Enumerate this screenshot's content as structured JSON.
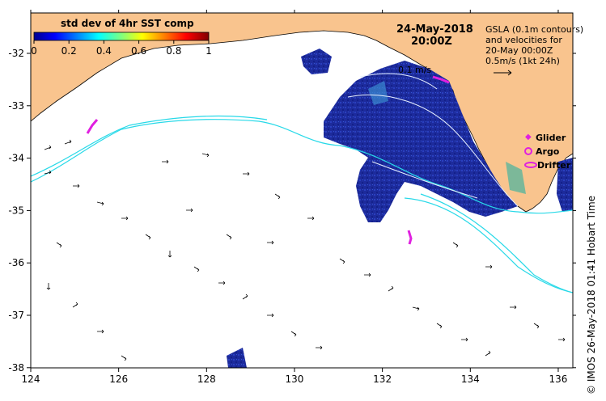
{
  "colorbar": {
    "title": "std dev of 4hr SST comp",
    "ticks": [
      "0",
      "0.2",
      "0.4",
      "0.6",
      "0.8",
      "1"
    ]
  },
  "map": {
    "date": "24-May-2018",
    "time": "20:00Z",
    "x_ticks": [
      "124",
      "126",
      "128",
      "130",
      "132",
      "134",
      "136"
    ],
    "y_ticks": [
      "-32",
      "-33",
      "-34",
      "-35",
      "-36",
      "-37",
      "-38"
    ],
    "contour_label": "0.1 m/s",
    "colors": {
      "land": "#f9c48e",
      "ocean": "#ffffff",
      "sst_low": "#1a2a9a",
      "cyan_contour": "#28d9e8",
      "magenta": "#e020e0"
    }
  },
  "gsla_note": {
    "line1": "GSLA (0.1m contours)",
    "line2": "and velocities for",
    "line3": "20-May 00:00Z",
    "line4": "0.5m/s (1kt 24h)"
  },
  "legend": {
    "glider": "Glider",
    "argo": "Argo",
    "drifter": "Drifter"
  },
  "credit": "© IMOS 26-May-2018 01:41 Hobart Time"
}
